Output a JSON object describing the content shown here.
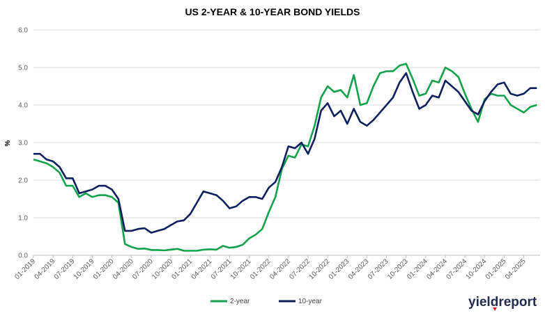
{
  "chart_data": {
    "type": "line",
    "title": "US 2-YEAR & 10-YEAR BOND YIELDS",
    "ylabel": "%",
    "xlabel": "",
    "ylim": [
      0,
      6
    ],
    "yticks": [
      "0.0",
      "1.0",
      "2.0",
      "3.0",
      "4.0",
      "5.0",
      "6.0"
    ],
    "grid": true,
    "legend_position": "bottom",
    "x_tick_labels": [
      "01-2019",
      "04-2019",
      "07-2019",
      "10-2019",
      "01-2020",
      "04-2020",
      "07-2020",
      "10-2020",
      "01-2021",
      "04-2021",
      "07-2021",
      "10-2021",
      "01-2022",
      "04-2022",
      "07-2022",
      "10-2022",
      "01-2023",
      "04-2023",
      "07-2023",
      "10-2023",
      "01-2024",
      "04-2024",
      "07-2024",
      "10-2024",
      "01-2025",
      "04-2025"
    ],
    "x": [
      "2019-01",
      "2019-02",
      "2019-03",
      "2019-04",
      "2019-05",
      "2019-06",
      "2019-07",
      "2019-08",
      "2019-09",
      "2019-10",
      "2019-11",
      "2019-12",
      "2020-01",
      "2020-02",
      "2020-03",
      "2020-04",
      "2020-05",
      "2020-06",
      "2020-07",
      "2020-08",
      "2020-09",
      "2020-10",
      "2020-11",
      "2020-12",
      "2021-01",
      "2021-02",
      "2021-03",
      "2021-04",
      "2021-05",
      "2021-06",
      "2021-07",
      "2021-08",
      "2021-09",
      "2021-10",
      "2021-11",
      "2021-12",
      "2022-01",
      "2022-02",
      "2022-03",
      "2022-04",
      "2022-05",
      "2022-06",
      "2022-07",
      "2022-08",
      "2022-09",
      "2022-10",
      "2022-11",
      "2022-12",
      "2023-01",
      "2023-02",
      "2023-03",
      "2023-04",
      "2023-05",
      "2023-06",
      "2023-07",
      "2023-08",
      "2023-09",
      "2023-10",
      "2023-11",
      "2023-12",
      "2024-01",
      "2024-02",
      "2024-03",
      "2024-04",
      "2024-05",
      "2024-06",
      "2024-07",
      "2024-08",
      "2024-09",
      "2024-10",
      "2024-11",
      "2024-12",
      "2025-01",
      "2025-02",
      "2025-03",
      "2025-04",
      "2025-05",
      "2025-06"
    ],
    "series": [
      {
        "name": "2-year",
        "color": "#10a24a",
        "values": [
          2.55,
          2.5,
          2.45,
          2.35,
          2.2,
          1.85,
          1.85,
          1.55,
          1.65,
          1.55,
          1.6,
          1.6,
          1.55,
          1.4,
          0.3,
          0.22,
          0.17,
          0.18,
          0.14,
          0.14,
          0.13,
          0.15,
          0.17,
          0.12,
          0.12,
          0.12,
          0.15,
          0.16,
          0.15,
          0.25,
          0.2,
          0.22,
          0.28,
          0.45,
          0.55,
          0.7,
          1.15,
          1.55,
          2.3,
          2.65,
          2.6,
          2.95,
          2.9,
          3.45,
          4.2,
          4.5,
          4.35,
          4.4,
          4.2,
          4.8,
          4.0,
          4.05,
          4.5,
          4.85,
          4.9,
          4.9,
          5.05,
          5.1,
          4.7,
          4.25,
          4.3,
          4.65,
          4.6,
          5.0,
          4.9,
          4.75,
          4.3,
          3.9,
          3.55,
          4.15,
          4.3,
          4.25,
          4.25,
          4.0,
          3.9,
          3.8,
          3.95,
          4.0
        ]
      },
      {
        "name": "10-year",
        "color": "#0c1f5e",
        "values": [
          2.7,
          2.7,
          2.55,
          2.5,
          2.35,
          2.05,
          2.05,
          1.65,
          1.7,
          1.75,
          1.85,
          1.85,
          1.75,
          1.5,
          0.65,
          0.65,
          0.7,
          0.72,
          0.6,
          0.65,
          0.7,
          0.8,
          0.9,
          0.93,
          1.1,
          1.4,
          1.7,
          1.65,
          1.6,
          1.45,
          1.25,
          1.3,
          1.45,
          1.55,
          1.55,
          1.5,
          1.8,
          1.95,
          2.35,
          2.9,
          2.85,
          3.0,
          2.7,
          3.1,
          3.85,
          4.05,
          3.7,
          3.85,
          3.5,
          3.9,
          3.55,
          3.45,
          3.6,
          3.8,
          4.0,
          4.2,
          4.6,
          4.85,
          4.35,
          3.9,
          4.0,
          4.25,
          4.2,
          4.65,
          4.5,
          4.35,
          4.1,
          3.85,
          3.75,
          4.1,
          4.35,
          4.55,
          4.6,
          4.3,
          4.25,
          4.3,
          4.45,
          4.45
        ]
      }
    ]
  },
  "legend": {
    "items": [
      {
        "label": "2-year",
        "color": "#10a24a"
      },
      {
        "label": "10-year",
        "color": "#0c1f5e"
      }
    ]
  },
  "logo": {
    "text_main": "yield",
    "text_accent": "report",
    "icon": "small-red-triangle-mark",
    "accent_mark_color": "#e41e26"
  }
}
